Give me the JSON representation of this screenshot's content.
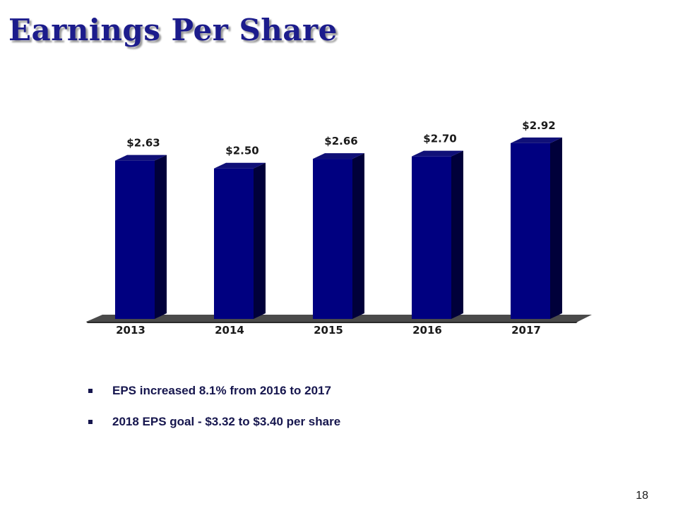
{
  "slide": {
    "title": "Earnings Per Share",
    "page_number": "18"
  },
  "bullets": [
    "EPS increased 8.1% from 2016 to 2017",
    "2018 EPS goal - $3.32 to $3.40 per share"
  ],
  "colors": {
    "bar_front": "#000080",
    "bar_side": "#00003a",
    "bar_top": "#101078",
    "floor": "#4a4a4a",
    "title": "#1c1c8c"
  },
  "chart_data": {
    "type": "bar",
    "categories": [
      "2013",
      "2014",
      "2015",
      "2016",
      "2017"
    ],
    "values": [
      2.63,
      2.5,
      2.66,
      2.7,
      2.92
    ],
    "data_labels": [
      "$2.63",
      "$2.50",
      "$2.66",
      "$2.70",
      "$2.92"
    ],
    "title": "",
    "xlabel": "",
    "ylabel": "",
    "ylim": [
      0,
      3.13
    ],
    "grid": false,
    "legend": "none",
    "style": "3d"
  }
}
